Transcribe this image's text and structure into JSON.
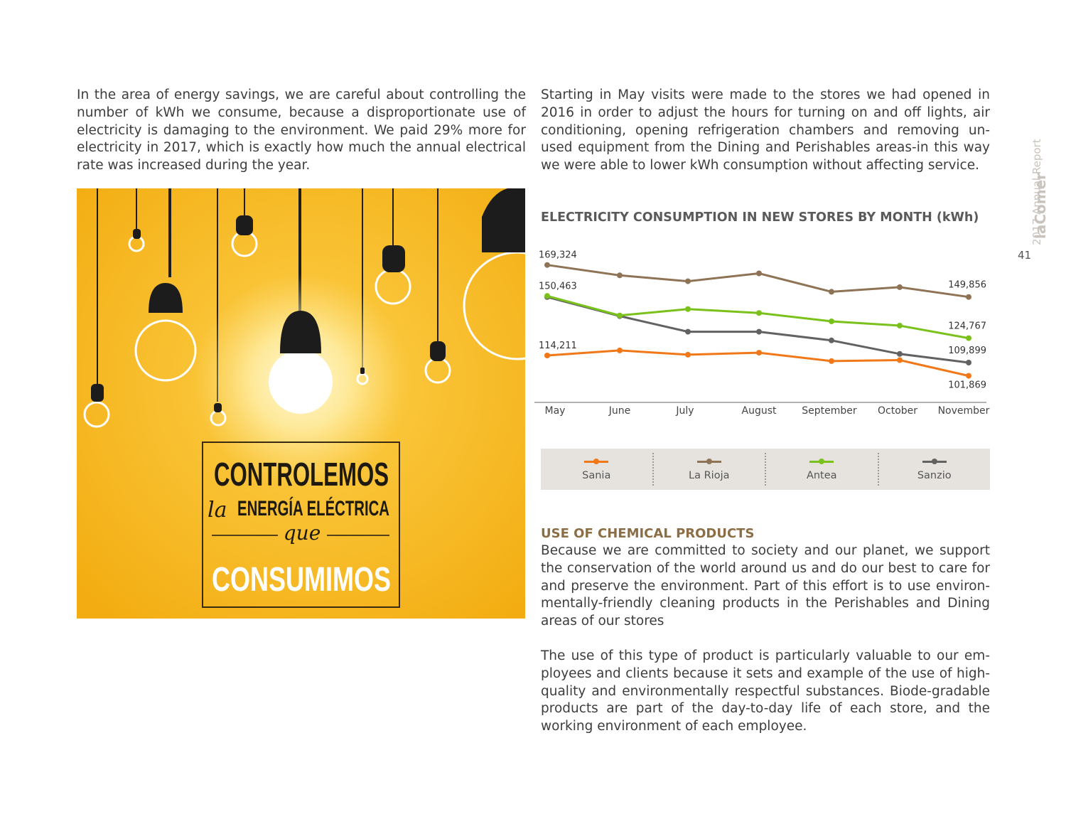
{
  "paragraphs": {
    "left": "In the area of energy savings, we are careful about controlling the number of kWh we consume, because a disproportionate use of electricity is damaging to the environment. We paid 29% more for electricity in 2017, which is exactly how much the annual electrical rate was increased during the year.",
    "right": "Starting in May visits were made to the stores we had opened in 2016 in order to adjust the hours for turning on and off lights, air conditioning, opening refrigeration chambers and removing un-used equipment from the Dining and Perishables areas-in this way we were able to lower kWh consumption without affecting service."
  },
  "poster": {
    "line1": "CONTROLEMOS",
    "line2_script": "la",
    "line2": "ENERGÍA ELÉCTRICA",
    "line3_script": "que",
    "line4": "CONSUMIMOS"
  },
  "chart_data": {
    "type": "line",
    "title": "ELECTRICITY CONSUMPTION IN NEW STORES BY MONTH (kWh)",
    "categories": [
      "May",
      "June",
      "July",
      "August",
      "September",
      "October",
      "November"
    ],
    "series": [
      {
        "name": "Sania",
        "color": "#f07818",
        "values": [
          114211,
          117300,
          114700,
          115900,
          110800,
          111400,
          101869
        ],
        "labels": {
          "first": "114,211",
          "last": "101,869"
        }
      },
      {
        "name": "La Rioja",
        "color": "#8e7355",
        "values": [
          169324,
          163000,
          159400,
          164200,
          153000,
          155800,
          149856
        ],
        "labels": {
          "first": "169,324",
          "last": "149,856"
        }
      },
      {
        "name": "Antea",
        "color": "#7ac21b",
        "values": [
          150463,
          138600,
          142500,
          140100,
          135000,
          132400,
          124767
        ],
        "labels": {
          "first": "150,463",
          "last": "124,767"
        }
      },
      {
        "name": "Sanzio",
        "color": "#626262",
        "values": [
          149800,
          138200,
          128700,
          128700,
          123400,
          115200,
          109899
        ],
        "labels": {
          "first": "",
          "last": "109,899"
        }
      }
    ],
    "ylim": [
      90000,
      180000
    ],
    "grid": false,
    "legend": "bottom"
  },
  "section": {
    "heading": "USE OF CHEMICAL PRODUCTS",
    "para1": "Because we are committed to society and our planet, we support the conservation of the world around us and do our best to care for and preserve the environment. Part of this effort is to use environ-mentally-friendly cleaning products in the Perishables and Dining areas of our stores",
    "para2": "The use of this type of product is particularly valuable to our em-ployees and clients because it sets and example of the use of high-quality and environmentally respectful substances. Biode-gradable products are part of the day-to-day life of each store, and the working environment of each employee."
  },
  "sidebar": {
    "report": "2017 Annual Report",
    "brand": "laComer",
    "page_number": "41"
  }
}
